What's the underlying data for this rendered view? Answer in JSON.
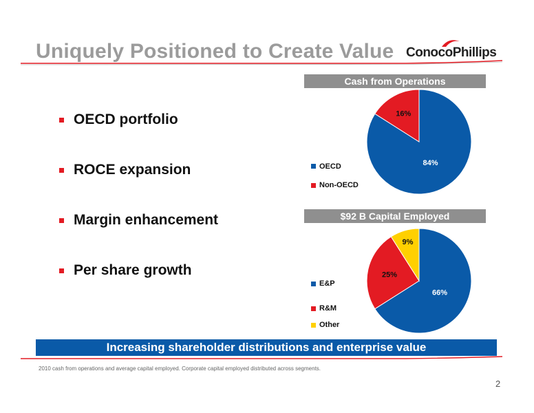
{
  "slide": {
    "title": "Uniquely Positioned to Create Value",
    "logo_text": "ConocoPhillips",
    "bullets": [
      "OECD portfolio",
      "ROCE expansion",
      "Margin enhancement",
      "Per share growth"
    ],
    "banner": "Increasing shareholder distributions and enterprise value",
    "footnote": "2010 cash from operations and average capital employed.  Corporate capital employed distributed across segments.",
    "page_number": "2"
  },
  "colors": {
    "title_gray": "#9b9b9b",
    "accent_red": "#e31b23",
    "blue": "#0a5aa8",
    "header_gray": "#8f8f8f",
    "yellow": "#ffd000"
  },
  "chart_data": [
    {
      "type": "pie",
      "title": "Cash from Operations",
      "categories": [
        "OECD",
        "Non-OECD"
      ],
      "values": [
        84,
        16
      ],
      "labels": [
        "84%",
        "16%"
      ],
      "colors": [
        "#0a5aa8",
        "#e31b23"
      ],
      "legend": "left"
    },
    {
      "type": "pie",
      "title": "$92 B Capital Employed",
      "categories": [
        "E&P",
        "R&M",
        "Other"
      ],
      "values": [
        66,
        25,
        9
      ],
      "labels": [
        "66%",
        "25%",
        "9%"
      ],
      "colors": [
        "#0a5aa8",
        "#e31b23",
        "#ffd000"
      ],
      "legend": "left"
    }
  ]
}
